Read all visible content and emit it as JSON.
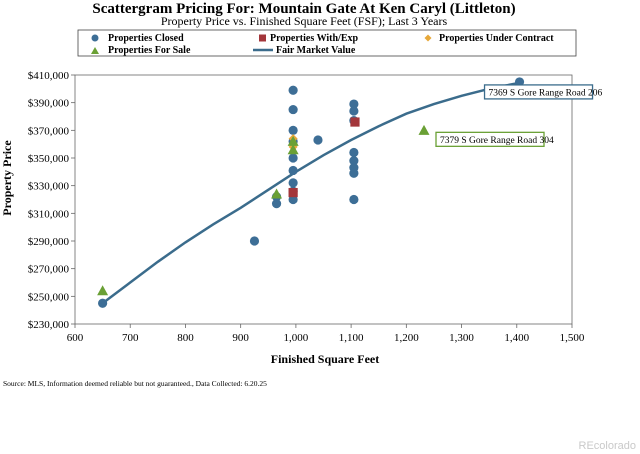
{
  "chart_data": {
    "type": "scatter",
    "title": "Scattergram Pricing For: Mountain Gate At Ken Caryl (Littleton)",
    "subtitle": "Property Price vs. Finished Square Feet (FSF); Last 3 Years",
    "xlabel": "Finished Square Feet",
    "ylabel": "Property Price",
    "xlim": [
      600,
      1500
    ],
    "ylim": [
      230000,
      410000
    ],
    "x_ticks": [
      600,
      700,
      800,
      900,
      1000,
      1100,
      1200,
      1300,
      1400,
      1500
    ],
    "x_tick_labels": [
      "600",
      "700",
      "800",
      "900",
      "1,000",
      "1,100",
      "1,200",
      "1,300",
      "1,400",
      "1,500"
    ],
    "y_ticks": [
      230000,
      250000,
      270000,
      290000,
      310000,
      330000,
      350000,
      370000,
      390000,
      410000
    ],
    "y_tick_labels": [
      "$230,000",
      "$250,000",
      "$270,000",
      "$290,000",
      "$310,000",
      "$330,000",
      "$350,000",
      "$370,000",
      "$390,000",
      "$410,000"
    ],
    "grid": false,
    "legend_position": "top",
    "series": [
      {
        "name": "Properties Closed",
        "marker": "circle",
        "color": "#3d6e96",
        "points": [
          [
            650,
            245000
          ],
          [
            925,
            290000
          ],
          [
            965,
            317000
          ],
          [
            965,
            322000
          ],
          [
            995,
            399000
          ],
          [
            995,
            385000
          ],
          [
            995,
            370000
          ],
          [
            995,
            362000
          ],
          [
            995,
            350000
          ],
          [
            995,
            341000
          ],
          [
            995,
            332000
          ],
          [
            995,
            326000
          ],
          [
            995,
            320000
          ],
          [
            1040,
            363000
          ],
          [
            1105,
            389000
          ],
          [
            1105,
            384000
          ],
          [
            1105,
            377000
          ],
          [
            1105,
            354000
          ],
          [
            1105,
            348000
          ],
          [
            1105,
            343000
          ],
          [
            1105,
            339000
          ],
          [
            1105,
            320000
          ],
          [
            1405,
            405000
          ]
        ]
      },
      {
        "name": "Properties With/Exp",
        "marker": "square",
        "color": "#a3363b",
        "points": [
          [
            995,
            325000
          ],
          [
            1107,
            376000
          ]
        ]
      },
      {
        "name": "Properties Under Contract",
        "marker": "diamond",
        "color": "#e7a83a",
        "points": [
          [
            995,
            358000
          ],
          [
            995,
            364000
          ]
        ]
      },
      {
        "name": "Properties For Sale",
        "marker": "triangle",
        "color": "#6aa035",
        "points": [
          [
            650,
            254000
          ],
          [
            965,
            324000
          ],
          [
            995,
            356000
          ],
          [
            995,
            362000
          ],
          [
            1232,
            370000
          ]
        ]
      },
      {
        "name": "Fair Market Value",
        "marker": "line",
        "color": "#3b6c8c",
        "points": [
          [
            650,
            245000
          ],
          [
            700,
            260000
          ],
          [
            750,
            275000
          ],
          [
            800,
            289000
          ],
          [
            850,
            302000
          ],
          [
            900,
            314000
          ],
          [
            950,
            327000
          ],
          [
            1000,
            340000
          ],
          [
            1050,
            352000
          ],
          [
            1100,
            363000
          ],
          [
            1150,
            373000
          ],
          [
            1200,
            382000
          ],
          [
            1250,
            389000
          ],
          [
            1300,
            395000
          ],
          [
            1350,
            400000
          ],
          [
            1400,
            404000
          ]
        ]
      }
    ],
    "annotations": [
      {
        "text": "7369 S Gore Range Road 206",
        "x": 1405,
        "y": 405000,
        "border_color": "#3b6c8c"
      },
      {
        "text": "7379 S Gore Range Road 304",
        "x": 1232,
        "y": 370000,
        "border_color": "#6aa035"
      }
    ],
    "source_note": "Source: MLS, Information deemed reliable but not guaranteed., Data Collected: 6.20.25",
    "watermark": "REcolorado"
  }
}
